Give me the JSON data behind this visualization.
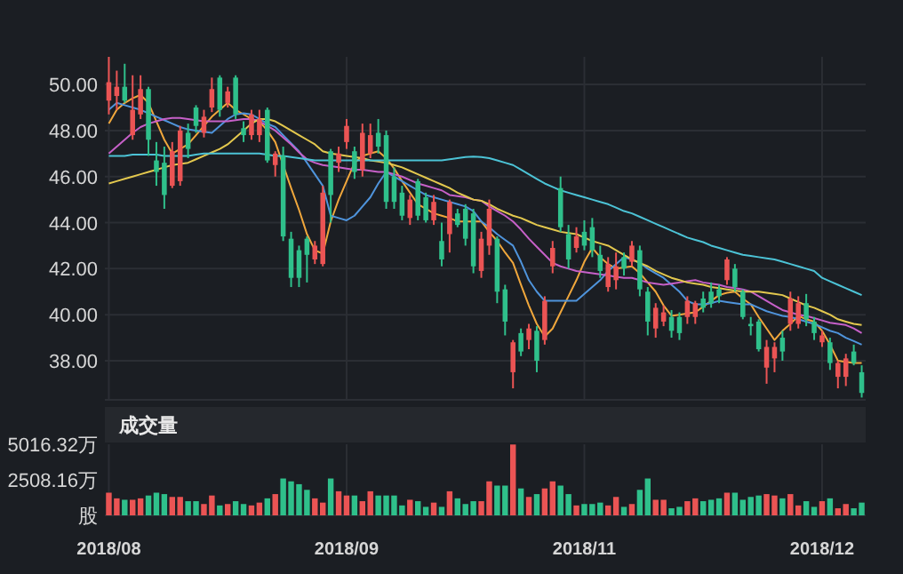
{
  "chart_data": [
    {
      "type": "candlestick",
      "categories": [
        "2018/08",
        null,
        null,
        null,
        null,
        null,
        null,
        null,
        null,
        null,
        null,
        null,
        null,
        null,
        null,
        null,
        null,
        null,
        null,
        null,
        null,
        null,
        null,
        null,
        null,
        null,
        null,
        null,
        null,
        null,
        "2018/09",
        null,
        null,
        null,
        null,
        null,
        null,
        null,
        null,
        null,
        null,
        null,
        null,
        null,
        null,
        null,
        null,
        null,
        null,
        null,
        null,
        null,
        null,
        null,
        null,
        null,
        null,
        null,
        null,
        null,
        "2018/11",
        null,
        null,
        null,
        null,
        null,
        null,
        null,
        null,
        null,
        null,
        null,
        null,
        null,
        null,
        null,
        null,
        null,
        null,
        null,
        null,
        null,
        null,
        null,
        null,
        null,
        null,
        null,
        null,
        null,
        "2018/12",
        null,
        null,
        null,
        null,
        null
      ],
      "ohlc": [
        [
          49.3,
          51.2,
          48.7,
          50.1
        ],
        [
          49.5,
          50.6,
          48.9,
          49.9
        ],
        [
          49.9,
          50.9,
          49.2,
          49.3
        ],
        [
          47.8,
          50.4,
          47.6,
          48.9
        ],
        [
          48.7,
          50.4,
          48.5,
          49.8
        ],
        [
          49.8,
          49.9,
          46.9,
          47.6
        ],
        [
          46.7,
          47.5,
          45.6,
          46.2
        ],
        [
          46.6,
          47.3,
          44.6,
          45.2
        ],
        [
          45.6,
          47.5,
          45.5,
          47.1
        ],
        [
          45.8,
          48.2,
          45.6,
          48.0
        ],
        [
          47.9,
          48.3,
          46.8,
          47.2
        ],
        [
          49.0,
          49.1,
          47.9,
          48.2
        ],
        [
          47.9,
          48.9,
          47.7,
          48.6
        ],
        [
          49.0,
          50.3,
          48.8,
          49.8
        ],
        [
          50.3,
          50.4,
          48.6,
          48.9
        ],
        [
          49.2,
          49.9,
          49.0,
          49.7
        ],
        [
          50.3,
          50.4,
          48.5,
          48.7
        ],
        [
          48.1,
          48.4,
          47.5,
          47.8
        ],
        [
          47.8,
          48.9,
          47.6,
          48.7
        ],
        [
          47.8,
          48.9,
          47.5,
          48.5
        ],
        [
          48.9,
          49.0,
          46.6,
          46.7
        ],
        [
          46.5,
          47.1,
          46.0,
          47.0
        ],
        [
          46.9,
          47.3,
          43.2,
          43.4
        ],
        [
          43.3,
          43.6,
          41.2,
          41.6
        ],
        [
          42.8,
          43.0,
          41.2,
          41.6
        ],
        [
          43.3,
          43.4,
          41.4,
          42.6
        ],
        [
          42.4,
          43.2,
          42.2,
          43.0
        ],
        [
          42.2,
          45.6,
          42.1,
          45.3
        ],
        [
          47.1,
          47.2,
          44.0,
          45.2
        ],
        [
          46.6,
          47.3,
          46.2,
          47.0
        ],
        [
          47.5,
          48.5,
          47.2,
          48.2
        ],
        [
          47.1,
          47.3,
          45.9,
          46.2
        ],
        [
          46.3,
          48.3,
          46.0,
          47.9
        ],
        [
          47.0,
          48.3,
          46.8,
          47.8
        ],
        [
          47.9,
          48.5,
          47.0,
          47.3
        ],
        [
          47.8,
          48.0,
          44.6,
          44.9
        ],
        [
          46.0,
          46.4,
          44.6,
          44.9
        ],
        [
          45.3,
          45.6,
          44.1,
          44.3
        ],
        [
          44.2,
          45.2,
          43.9,
          45.0
        ],
        [
          45.8,
          45.9,
          44.1,
          44.3
        ],
        [
          45.1,
          45.3,
          44.0,
          44.1
        ],
        [
          44.1,
          45.2,
          43.9,
          44.9
        ],
        [
          43.2,
          44.0,
          42.1,
          42.4
        ],
        [
          43.5,
          45.0,
          42.7,
          44.9
        ],
        [
          44.4,
          44.6,
          43.8,
          43.9
        ],
        [
          44.6,
          44.8,
          43.0,
          43.3
        ],
        [
          44.4,
          44.6,
          41.8,
          42.1
        ],
        [
          41.9,
          43.6,
          41.6,
          43.3
        ],
        [
          43.0,
          45.0,
          42.6,
          44.6
        ],
        [
          43.3,
          43.4,
          40.5,
          41.0
        ],
        [
          41.1,
          41.3,
          39.1,
          39.7
        ],
        [
          37.5,
          38.9,
          36.8,
          38.8
        ],
        [
          39.2,
          39.4,
          38.2,
          38.4
        ],
        [
          38.9,
          39.6,
          38.5,
          39.4
        ],
        [
          39.3,
          39.5,
          37.5,
          38.0
        ],
        [
          38.9,
          40.8,
          38.7,
          40.6
        ],
        [
          42.1,
          43.2,
          41.8,
          42.9
        ],
        [
          45.5,
          46.0,
          43.6,
          43.8
        ],
        [
          43.5,
          43.9,
          42.0,
          42.4
        ],
        [
          42.9,
          43.8,
          42.7,
          43.4
        ],
        [
          43.6,
          44.1,
          42.8,
          43.0
        ],
        [
          43.8,
          44.2,
          42.5,
          42.8
        ],
        [
          42.6,
          43.0,
          41.6,
          41.9
        ],
        [
          41.2,
          42.5,
          41.0,
          42.2
        ],
        [
          41.5,
          42.7,
          41.1,
          42.1
        ],
        [
          42.5,
          42.7,
          41.7,
          42.0
        ],
        [
          42.3,
          43.2,
          42.1,
          43.0
        ],
        [
          42.8,
          43.0,
          40.8,
          41.1
        ],
        [
          41.0,
          41.2,
          39.1,
          39.7
        ],
        [
          39.4,
          40.5,
          39.0,
          40.3
        ],
        [
          39.7,
          40.4,
          39.5,
          40.1
        ],
        [
          39.9,
          40.2,
          39.0,
          39.3
        ],
        [
          39.9,
          40.1,
          38.9,
          39.2
        ],
        [
          39.9,
          40.8,
          39.6,
          40.6
        ],
        [
          39.9,
          40.6,
          39.6,
          40.5
        ],
        [
          40.7,
          41.0,
          40.1,
          40.3
        ],
        [
          41.0,
          41.4,
          40.3,
          40.5
        ],
        [
          41.1,
          41.3,
          40.5,
          40.8
        ],
        [
          41.5,
          42.5,
          41.3,
          42.4
        ],
        [
          42.0,
          42.2,
          41.0,
          41.2
        ],
        [
          41.0,
          41.1,
          39.8,
          39.9
        ],
        [
          39.6,
          39.9,
          39.1,
          39.5
        ],
        [
          39.7,
          39.8,
          38.4,
          38.5
        ],
        [
          37.7,
          38.9,
          37.0,
          38.6
        ],
        [
          38.1,
          38.8,
          37.5,
          38.6
        ],
        [
          39.0,
          39.3,
          38.0,
          38.4
        ],
        [
          39.6,
          41.0,
          39.3,
          40.7
        ],
        [
          39.6,
          40.8,
          39.4,
          40.5
        ],
        [
          40.5,
          40.9,
          39.5,
          39.8
        ],
        [
          39.7,
          39.9,
          38.9,
          39.2
        ],
        [
          38.8,
          39.3,
          38.6,
          39.1
        ],
        [
          38.8,
          39.0,
          37.6,
          37.9
        ],
        [
          37.3,
          38.0,
          36.8,
          37.9
        ],
        [
          37.3,
          38.3,
          36.9,
          38.1
        ],
        [
          38.4,
          38.7,
          37.8,
          37.9
        ],
        [
          37.5,
          37.8,
          36.4,
          36.6
        ]
      ],
      "colors": [
        "#eb5454",
        "#eb5454",
        "#2fc08b",
        "#eb5454",
        "#eb5454",
        "#2fc08b",
        "#2fc08b",
        "#2fc08b",
        "#eb5454",
        "#eb5454",
        "#2fc08b",
        "#2fc08b",
        "#eb5454",
        "#eb5454",
        "#2fc08b",
        "#eb5454",
        "#2fc08b",
        "#2fc08b",
        "#eb5454",
        "#eb5454",
        "#2fc08b",
        "#eb5454",
        "#2fc08b",
        "#2fc08b",
        "#2fc08b",
        "#2fc08b",
        "#eb5454",
        "#eb5454",
        "#2fc08b",
        "#eb5454",
        "#eb5454",
        "#2fc08b",
        "#eb5454",
        "#eb5454",
        "#2fc08b",
        "#2fc08b",
        "#2fc08b",
        "#2fc08b",
        "#eb5454",
        "#2fc08b",
        "#2fc08b",
        "#eb5454",
        "#2fc08b",
        "#eb5454",
        "#2fc08b",
        "#2fc08b",
        "#2fc08b",
        "#eb5454",
        "#eb5454",
        "#2fc08b",
        "#2fc08b",
        "#eb5454",
        "#2fc08b",
        "#eb5454",
        "#2fc08b",
        "#eb5454",
        "#eb5454",
        "#2fc08b",
        "#2fc08b",
        "#eb5454",
        "#2fc08b",
        "#2fc08b",
        "#2fc08b",
        "#eb5454",
        "#eb5454",
        "#2fc08b",
        "#eb5454",
        "#2fc08b",
        "#2fc08b",
        "#eb5454",
        "#eb5454",
        "#2fc08b",
        "#2fc08b",
        "#eb5454",
        "#eb5454",
        "#2fc08b",
        "#2fc08b",
        "#2fc08b",
        "#eb5454",
        "#2fc08b",
        "#2fc08b",
        "#2fc08b",
        "#2fc08b",
        "#eb5454",
        "#eb5454",
        "#2fc08b",
        "#eb5454",
        "#eb5454",
        "#2fc08b",
        "#2fc08b",
        "#eb5454",
        "#2fc08b",
        "#eb5454",
        "#eb5454",
        "#2fc08b",
        "#2fc08b"
      ],
      "series": [
        {
          "type": "line",
          "color": "#f0a73c",
          "values": [
            48.3,
            48.9,
            49.2,
            49.4,
            49.55,
            49.2,
            48.4,
            47.6,
            47.0,
            47.2,
            47.4,
            47.8,
            48.2,
            48.6,
            48.9,
            49.2,
            48.9,
            48.7,
            48.5,
            48.4,
            48.0,
            47.5,
            46.5,
            45.5,
            44.55,
            43.5,
            42.8,
            42.65,
            44.05,
            45.0,
            45.8,
            46.6,
            46.9,
            47.0,
            47.1,
            46.8,
            46.35,
            45.8,
            45.3,
            44.8,
            44.6,
            44.4,
            44.3,
            44.2,
            44.05,
            44.05,
            44.05,
            44.05,
            43.6,
            43.2,
            42.7,
            42.25,
            41.3,
            40.4,
            39.6,
            39.05,
            39.4,
            40.1,
            40.8,
            41.5,
            42.3,
            42.9,
            42.5,
            42.2,
            42.0,
            42.05,
            42.1,
            41.8,
            41.4,
            41.0,
            40.4,
            39.95,
            40.0,
            40.05,
            40.1,
            40.35,
            40.6,
            40.85,
            40.95,
            41.0,
            40.7,
            40.45,
            39.9,
            39.4,
            38.9,
            39.3,
            39.6,
            39.95,
            39.8,
            39.7,
            39.3,
            38.7,
            38.0,
            37.95,
            37.9,
            37.9
          ]
        },
        {
          "type": "line",
          "color": "#4f94dc",
          "values": [
            48.9,
            49.2,
            49.1,
            49.0,
            48.9,
            48.75,
            48.6,
            48.45,
            48.3,
            48.15,
            48.05,
            48.0,
            47.95,
            47.9,
            48.2,
            48.5,
            48.7,
            48.75,
            48.7,
            48.5,
            48.3,
            48.15,
            47.8,
            47.45,
            47.1,
            46.6,
            46.1,
            45.6,
            44.3,
            44.2,
            44.1,
            44.3,
            44.7,
            45.1,
            45.7,
            46.2,
            46.0,
            45.8,
            45.6,
            45.4,
            45.2,
            45.1,
            45.0,
            44.9,
            44.8,
            44.7,
            44.5,
            44.05,
            43.8,
            43.5,
            43.25,
            43.0,
            42.3,
            41.5,
            41.0,
            40.6,
            40.6,
            40.6,
            40.6,
            40.6,
            40.9,
            41.2,
            41.5,
            41.9,
            42.2,
            42.5,
            42.4,
            42.25,
            42.0,
            41.8,
            41.6,
            41.3,
            41.0,
            40.6,
            40.45,
            40.45,
            40.5,
            40.6,
            40.55,
            40.5,
            40.45,
            40.45,
            40.3,
            40.15,
            40.05,
            39.95,
            39.9,
            39.8,
            39.7,
            39.6,
            39.45,
            39.3,
            39.2,
            39.0,
            38.85,
            38.7
          ]
        },
        {
          "type": "line",
          "color": "#c660c8",
          "values": [
            47.0,
            47.3,
            47.6,
            47.9,
            48.15,
            48.3,
            48.4,
            48.5,
            48.55,
            48.55,
            48.5,
            48.45,
            48.4,
            48.4,
            48.4,
            48.4,
            48.45,
            48.5,
            48.5,
            48.4,
            48.2,
            48.0,
            47.7,
            47.4,
            47.05,
            46.75,
            46.6,
            46.5,
            46.45,
            46.4,
            46.35,
            46.3,
            46.3,
            46.25,
            46.2,
            46.2,
            46.1,
            46.0,
            45.85,
            45.7,
            45.6,
            45.5,
            45.4,
            45.2,
            45.15,
            45.1,
            45.0,
            44.95,
            44.7,
            44.5,
            44.3,
            44.05,
            43.7,
            43.3,
            42.95,
            42.6,
            42.25,
            42.1,
            42.0,
            41.9,
            41.85,
            41.8,
            41.75,
            41.7,
            41.65,
            41.6,
            41.6,
            41.5,
            41.4,
            41.35,
            41.3,
            41.35,
            41.4,
            41.45,
            41.5,
            41.4,
            41.35,
            41.3,
            41.2,
            41.15,
            41.1,
            41.0,
            40.8,
            40.6,
            40.4,
            40.2,
            40.1,
            40.0,
            39.95,
            39.85,
            39.75,
            39.65,
            39.6,
            39.55,
            39.4,
            39.2
          ]
        },
        {
          "type": "line",
          "color": "#e3c84e",
          "values": [
            45.7,
            45.8,
            45.9,
            46.0,
            46.1,
            46.2,
            46.3,
            46.4,
            46.5,
            46.55,
            46.6,
            46.75,
            46.9,
            47.05,
            47.2,
            47.4,
            47.7,
            48.0,
            48.3,
            48.5,
            48.5,
            48.4,
            48.2,
            48.0,
            47.8,
            47.6,
            47.4,
            47.1,
            47.0,
            46.95,
            46.9,
            46.85,
            46.8,
            46.7,
            46.65,
            46.6,
            46.5,
            46.4,
            46.25,
            46.1,
            45.95,
            45.8,
            45.65,
            45.5,
            45.3,
            45.15,
            45.0,
            44.95,
            44.8,
            44.6,
            44.45,
            44.3,
            44.2,
            44.05,
            43.9,
            43.8,
            43.7,
            43.6,
            43.55,
            43.5,
            43.35,
            43.2,
            43.1,
            43.0,
            42.8,
            42.6,
            42.4,
            42.25,
            42.1,
            41.9,
            41.75,
            41.6,
            41.5,
            41.4,
            41.35,
            41.3,
            41.2,
            41.15,
            41.1,
            41.05,
            41.0,
            41.0,
            41.0,
            40.95,
            40.9,
            40.85,
            40.7,
            40.55,
            40.4,
            40.3,
            40.15,
            40.0,
            39.8,
            39.7,
            39.6,
            39.55
          ]
        },
        {
          "type": "line",
          "color": "#4cc3d6",
          "values": [
            46.9,
            46.9,
            46.9,
            46.95,
            46.95,
            46.95,
            46.95,
            46.9,
            46.9,
            46.9,
            46.9,
            46.95,
            47.0,
            47.0,
            47.0,
            47.0,
            47.0,
            47.0,
            47.0,
            47.0,
            46.95,
            46.9,
            46.9,
            46.85,
            46.8,
            46.75,
            46.7,
            46.7,
            46.7,
            46.7,
            46.7,
            46.7,
            46.7,
            46.7,
            46.7,
            46.7,
            46.7,
            46.7,
            46.7,
            46.7,
            46.7,
            46.7,
            46.7,
            46.75,
            46.8,
            46.85,
            46.87,
            46.85,
            46.8,
            46.7,
            46.6,
            46.5,
            46.3,
            46.1,
            45.9,
            45.7,
            45.55,
            45.4,
            45.3,
            45.2,
            45.1,
            45.0,
            44.9,
            44.8,
            44.65,
            44.5,
            44.4,
            44.25,
            44.1,
            43.95,
            43.8,
            43.65,
            43.5,
            43.35,
            43.25,
            43.15,
            43.0,
            42.9,
            42.8,
            42.7,
            42.6,
            42.55,
            42.5,
            42.45,
            42.4,
            42.3,
            42.2,
            42.1,
            42.0,
            41.9,
            41.6,
            41.45,
            41.3,
            41.15,
            41.0,
            40.85
          ]
        }
      ],
      "ylim": [
        36.3,
        51.2
      ],
      "yticks": [
        {
          "value": 38,
          "label": "38.00"
        },
        {
          "value": 40,
          "label": "40.00"
        },
        {
          "value": 42,
          "label": "42.00"
        },
        {
          "value": 44,
          "label": "44.00"
        },
        {
          "value": 46,
          "label": "46.00"
        },
        {
          "value": 48,
          "label": "48.00"
        },
        {
          "value": 50,
          "label": "50.00"
        }
      ],
      "grid": true,
      "tick_labels": "y"
    },
    {
      "type": "bar",
      "title": "成交量",
      "categories": [
        "2018/08",
        null,
        null,
        null,
        null,
        null,
        null,
        null,
        null,
        null,
        null,
        null,
        null,
        null,
        null,
        null,
        null,
        null,
        null,
        null,
        null,
        null,
        null,
        null,
        null,
        null,
        null,
        null,
        null,
        null,
        "2018/09",
        null,
        null,
        null,
        null,
        null,
        null,
        null,
        null,
        null,
        null,
        null,
        null,
        null,
        null,
        null,
        null,
        null,
        null,
        null,
        null,
        null,
        null,
        null,
        null,
        null,
        null,
        null,
        null,
        null,
        "2018/11",
        null,
        null,
        null,
        null,
        null,
        null,
        null,
        null,
        null,
        null,
        null,
        null,
        null,
        null,
        null,
        null,
        null,
        null,
        null,
        null,
        null,
        null,
        null,
        null,
        null,
        null,
        null,
        null,
        null,
        "2018/12",
        null,
        null,
        null,
        null,
        null
      ],
      "values": [
        1600,
        1200,
        1100,
        1100,
        1200,
        1400,
        1600,
        1500,
        1300,
        1300,
        1000,
        1000,
        800,
        1400,
        700,
        800,
        1000,
        800,
        700,
        900,
        1200,
        1500,
        2600,
        2400,
        2200,
        1800,
        1200,
        900,
        2600,
        1700,
        1400,
        1400,
        1000,
        1700,
        1400,
        1400,
        1400,
        700,
        1100,
        1000,
        600,
        900,
        600,
        1700,
        1200,
        800,
        1000,
        1000,
        2400,
        2100,
        2100,
        5000,
        1900,
        1300,
        1500,
        1900,
        2400,
        2100,
        1500,
        700,
        800,
        800,
        900,
        700,
        1300,
        600,
        800,
        1800,
        2600,
        1100,
        1100,
        500,
        600,
        1000,
        1200,
        1000,
        1100,
        1200,
        1600,
        1600,
        1100,
        1300,
        1400,
        1500,
        1400,
        1200,
        1500,
        700,
        1000,
        600,
        1000,
        1200,
        500,
        800,
        500,
        900
      ],
      "colors": [
        "#eb5454",
        "#eb5454",
        "#2fc08b",
        "#eb5454",
        "#eb5454",
        "#2fc08b",
        "#2fc08b",
        "#2fc08b",
        "#eb5454",
        "#eb5454",
        "#2fc08b",
        "#2fc08b",
        "#eb5454",
        "#eb5454",
        "#2fc08b",
        "#eb5454",
        "#2fc08b",
        "#2fc08b",
        "#eb5454",
        "#eb5454",
        "#2fc08b",
        "#eb5454",
        "#2fc08b",
        "#2fc08b",
        "#2fc08b",
        "#2fc08b",
        "#eb5454",
        "#eb5454",
        "#2fc08b",
        "#eb5454",
        "#eb5454",
        "#2fc08b",
        "#eb5454",
        "#eb5454",
        "#2fc08b",
        "#2fc08b",
        "#2fc08b",
        "#2fc08b",
        "#eb5454",
        "#2fc08b",
        "#2fc08b",
        "#eb5454",
        "#2fc08b",
        "#eb5454",
        "#2fc08b",
        "#2fc08b",
        "#2fc08b",
        "#eb5454",
        "#eb5454",
        "#2fc08b",
        "#2fc08b",
        "#eb5454",
        "#2fc08b",
        "#eb5454",
        "#2fc08b",
        "#eb5454",
        "#eb5454",
        "#2fc08b",
        "#2fc08b",
        "#eb5454",
        "#2fc08b",
        "#2fc08b",
        "#2fc08b",
        "#eb5454",
        "#eb5454",
        "#2fc08b",
        "#eb5454",
        "#2fc08b",
        "#2fc08b",
        "#eb5454",
        "#eb5454",
        "#2fc08b",
        "#2fc08b",
        "#eb5454",
        "#eb5454",
        "#2fc08b",
        "#2fc08b",
        "#2fc08b",
        "#eb5454",
        "#2fc08b",
        "#2fc08b",
        "#2fc08b",
        "#2fc08b",
        "#eb5454",
        "#eb5454",
        "#2fc08b",
        "#eb5454",
        "#eb5454",
        "#2fc08b",
        "#2fc08b",
        "#eb5454",
        "#2fc08b",
        "#eb5454",
        "#eb5454",
        "#2fc08b",
        "#2fc08b"
      ],
      "ylim": [
        0,
        5016.32
      ],
      "yticks": [
        {
          "value": 0,
          "label": "股"
        },
        {
          "value": 2508.16,
          "label": "2508.16万"
        },
        {
          "value": 5016.32,
          "label": "5016.32万"
        }
      ],
      "grid": "x"
    }
  ]
}
